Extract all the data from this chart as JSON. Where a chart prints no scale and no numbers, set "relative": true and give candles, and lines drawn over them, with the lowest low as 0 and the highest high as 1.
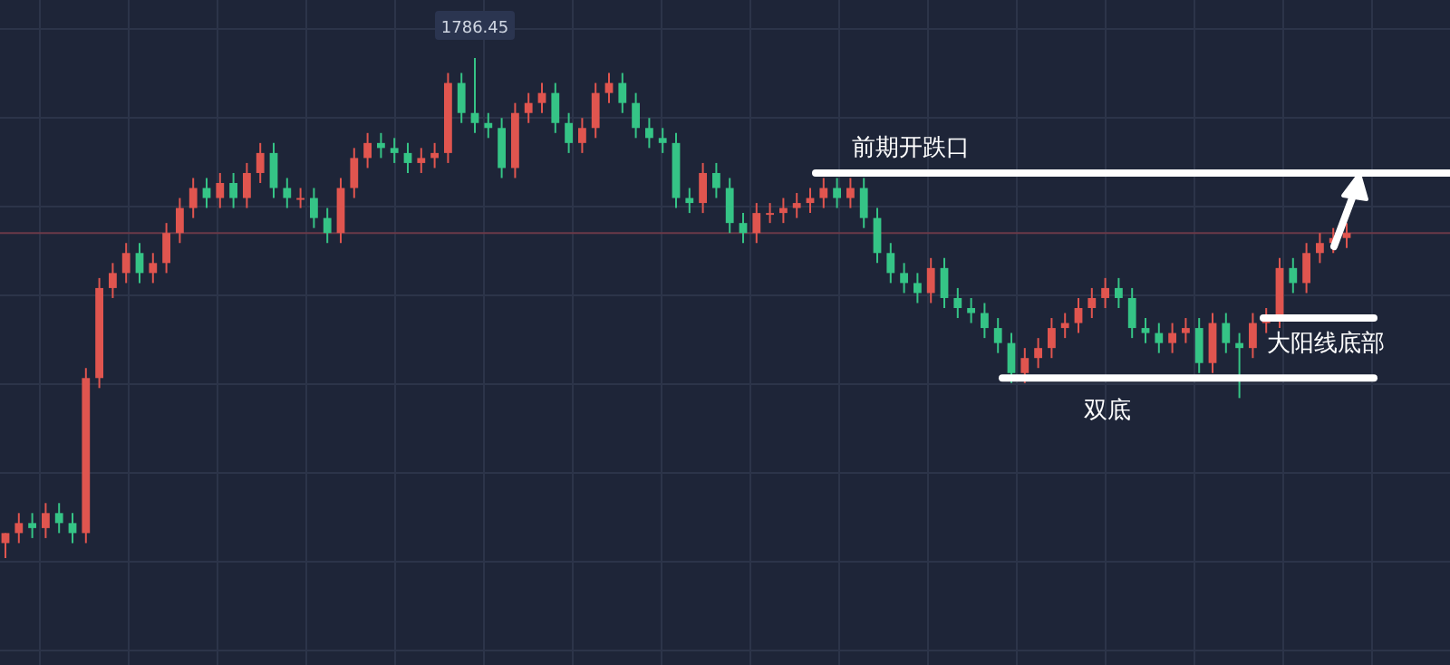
{
  "chart_data": {
    "type": "candlestick",
    "relative": true,
    "grid": true,
    "categories": [
      null,
      null,
      null,
      null,
      null,
      null,
      null,
      null,
      null,
      null,
      null,
      null,
      null,
      null,
      null,
      null,
      null,
      null,
      null,
      null,
      null,
      null,
      null,
      null,
      null,
      null,
      null,
      null,
      null,
      null,
      null,
      null,
      null,
      null,
      null,
      null,
      null,
      null,
      null,
      null,
      null,
      null,
      null,
      null,
      null,
      null,
      null,
      null,
      null,
      null,
      null,
      null,
      null,
      null,
      null,
      null,
      null,
      null,
      null,
      null,
      null,
      null,
      null,
      null,
      null,
      null,
      null,
      null,
      null,
      null,
      null,
      null,
      null,
      null,
      null,
      null,
      null,
      null,
      null,
      null,
      null,
      null,
      null,
      null,
      null,
      null,
      null,
      null,
      null,
      null,
      null,
      null,
      null,
      null,
      null,
      null,
      null,
      null,
      null,
      null,
      null
    ],
    "ohlc": [
      [
        0.03,
        0.05,
        0.0,
        0.05
      ],
      [
        0.05,
        0.09,
        0.03,
        0.07
      ],
      [
        0.07,
        0.09,
        0.04,
        0.06
      ],
      [
        0.06,
        0.11,
        0.04,
        0.09
      ],
      [
        0.09,
        0.11,
        0.05,
        0.07
      ],
      [
        0.07,
        0.09,
        0.03,
        0.05
      ],
      [
        0.05,
        0.38,
        0.03,
        0.36
      ],
      [
        0.36,
        0.56,
        0.34,
        0.54
      ],
      [
        0.54,
        0.59,
        0.52,
        0.57
      ],
      [
        0.57,
        0.63,
        0.55,
        0.61
      ],
      [
        0.61,
        0.63,
        0.55,
        0.57
      ],
      [
        0.57,
        0.61,
        0.55,
        0.59
      ],
      [
        0.59,
        0.67,
        0.57,
        0.65
      ],
      [
        0.65,
        0.72,
        0.63,
        0.7
      ],
      [
        0.7,
        0.76,
        0.68,
        0.74
      ],
      [
        0.74,
        0.76,
        0.7,
        0.72
      ],
      [
        0.72,
        0.77,
        0.7,
        0.75
      ],
      [
        0.75,
        0.77,
        0.7,
        0.72
      ],
      [
        0.72,
        0.79,
        0.7,
        0.77
      ],
      [
        0.77,
        0.83,
        0.75,
        0.81
      ],
      [
        0.81,
        0.83,
        0.72,
        0.74
      ],
      [
        0.74,
        0.76,
        0.7,
        0.72
      ],
      [
        0.72,
        0.74,
        0.7,
        0.72
      ],
      [
        0.72,
        0.74,
        0.66,
        0.68
      ],
      [
        0.68,
        0.7,
        0.63,
        0.65
      ],
      [
        0.65,
        0.76,
        0.63,
        0.74
      ],
      [
        0.74,
        0.82,
        0.72,
        0.8
      ],
      [
        0.8,
        0.85,
        0.78,
        0.83
      ],
      [
        0.83,
        0.85,
        0.8,
        0.82
      ],
      [
        0.82,
        0.84,
        0.79,
        0.81
      ],
      [
        0.81,
        0.83,
        0.77,
        0.79
      ],
      [
        0.79,
        0.82,
        0.77,
        0.8
      ],
      [
        0.8,
        0.83,
        0.78,
        0.81
      ],
      [
        0.81,
        0.97,
        0.79,
        0.95
      ],
      [
        0.95,
        0.97,
        0.87,
        0.89
      ],
      [
        0.89,
        1.0,
        0.85,
        0.87
      ],
      [
        0.87,
        0.89,
        0.84,
        0.86
      ],
      [
        0.86,
        0.88,
        0.76,
        0.78
      ],
      [
        0.78,
        0.91,
        0.76,
        0.89
      ],
      [
        0.89,
        0.93,
        0.87,
        0.91
      ],
      [
        0.91,
        0.95,
        0.89,
        0.93
      ],
      [
        0.93,
        0.95,
        0.85,
        0.87
      ],
      [
        0.87,
        0.89,
        0.81,
        0.83
      ],
      [
        0.83,
        0.88,
        0.81,
        0.86
      ],
      [
        0.86,
        0.95,
        0.84,
        0.93
      ],
      [
        0.93,
        0.97,
        0.91,
        0.95
      ],
      [
        0.95,
        0.97,
        0.89,
        0.91
      ],
      [
        0.91,
        0.93,
        0.84,
        0.86
      ],
      [
        0.86,
        0.88,
        0.82,
        0.84
      ],
      [
        0.84,
        0.86,
        0.81,
        0.83
      ],
      [
        0.83,
        0.85,
        0.7,
        0.72
      ],
      [
        0.72,
        0.74,
        0.69,
        0.71
      ],
      [
        0.71,
        0.79,
        0.69,
        0.77
      ],
      [
        0.77,
        0.79,
        0.72,
        0.74
      ],
      [
        0.74,
        0.76,
        0.65,
        0.67
      ],
      [
        0.67,
        0.69,
        0.63,
        0.65
      ],
      [
        0.65,
        0.71,
        0.63,
        0.69
      ],
      [
        0.69,
        0.71,
        0.67,
        0.69
      ],
      [
        0.69,
        0.72,
        0.67,
        0.7
      ],
      [
        0.7,
        0.73,
        0.68,
        0.71
      ],
      [
        0.71,
        0.74,
        0.69,
        0.72
      ],
      [
        0.72,
        0.76,
        0.7,
        0.74
      ],
      [
        0.74,
        0.76,
        0.7,
        0.72
      ],
      [
        0.72,
        0.76,
        0.7,
        0.74
      ],
      [
        0.74,
        0.76,
        0.66,
        0.68
      ],
      [
        0.68,
        0.7,
        0.59,
        0.61
      ],
      [
        0.61,
        0.63,
        0.55,
        0.57
      ],
      [
        0.57,
        0.59,
        0.53,
        0.55
      ],
      [
        0.55,
        0.57,
        0.51,
        0.53
      ],
      [
        0.53,
        0.6,
        0.51,
        0.58
      ],
      [
        0.58,
        0.6,
        0.5,
        0.52
      ],
      [
        0.52,
        0.54,
        0.48,
        0.5
      ],
      [
        0.5,
        0.52,
        0.47,
        0.49
      ],
      [
        0.49,
        0.51,
        0.44,
        0.46
      ],
      [
        0.46,
        0.48,
        0.41,
        0.43
      ],
      [
        0.43,
        0.45,
        0.35,
        0.37
      ],
      [
        0.37,
        0.42,
        0.35,
        0.4
      ],
      [
        0.4,
        0.44,
        0.38,
        0.42
      ],
      [
        0.42,
        0.48,
        0.4,
        0.46
      ],
      [
        0.46,
        0.49,
        0.44,
        0.47
      ],
      [
        0.47,
        0.52,
        0.45,
        0.5
      ],
      [
        0.5,
        0.54,
        0.48,
        0.52
      ],
      [
        0.52,
        0.56,
        0.5,
        0.54
      ],
      [
        0.54,
        0.56,
        0.5,
        0.52
      ],
      [
        0.52,
        0.54,
        0.44,
        0.46
      ],
      [
        0.46,
        0.48,
        0.43,
        0.45
      ],
      [
        0.45,
        0.47,
        0.41,
        0.43
      ],
      [
        0.43,
        0.47,
        0.41,
        0.45
      ],
      [
        0.45,
        0.48,
        0.43,
        0.46
      ],
      [
        0.46,
        0.48,
        0.37,
        0.39
      ],
      [
        0.39,
        0.49,
        0.37,
        0.47
      ],
      [
        0.47,
        0.49,
        0.41,
        0.43
      ],
      [
        0.43,
        0.45,
        0.32,
        0.42
      ],
      [
        0.42,
        0.49,
        0.4,
        0.47
      ],
      [
        0.47,
        0.5,
        0.45,
        0.48
      ],
      [
        0.48,
        0.6,
        0.46,
        0.58
      ],
      [
        0.58,
        0.6,
        0.53,
        0.55
      ],
      [
        0.55,
        0.63,
        0.53,
        0.61
      ],
      [
        0.61,
        0.65,
        0.59,
        0.63
      ],
      [
        0.63,
        0.66,
        0.61,
        0.64
      ],
      [
        0.64,
        0.67,
        0.62,
        0.65
      ]
    ],
    "ref_lines": [
      {
        "axis": "y",
        "value": 0.77,
        "label": "前期开跌口",
        "color": "#ffffff"
      },
      {
        "axis": "y",
        "value": 0.48,
        "label": "大阳线底部",
        "color": "#ffffff"
      },
      {
        "axis": "y",
        "value": 0.36,
        "label": "双底",
        "color": "#ffffff"
      },
      {
        "axis": "y",
        "value": 0.65,
        "color": "#6b3a48"
      }
    ],
    "annotations": [
      {
        "text": "1786.45",
        "y": 1
      }
    ]
  }
}
